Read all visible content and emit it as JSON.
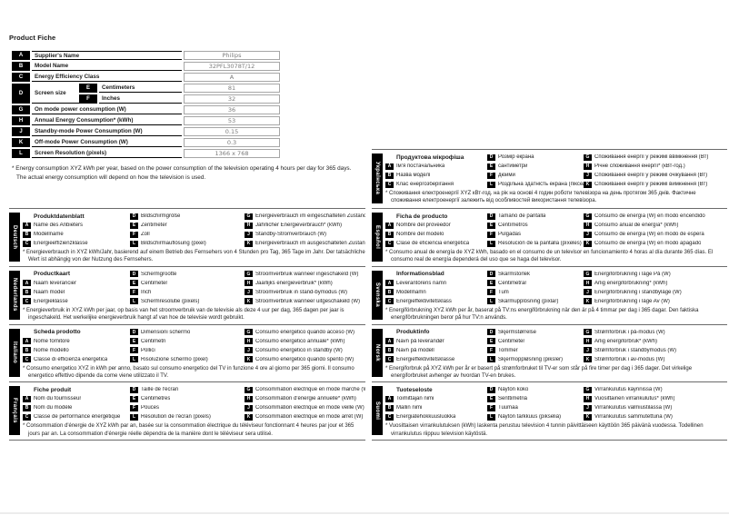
{
  "page": {
    "title": "Product Fiche",
    "colors": {
      "ink": "#1a1a1a",
      "badge_bg": "#000000",
      "badge_text": "#ffffff",
      "value_text": "#7b7b7b",
      "rule": "#6a6a6a"
    }
  },
  "product_table": {
    "rows": [
      {
        "letter": "A",
        "label": "Supplier's Name",
        "value": "Philips"
      },
      {
        "letter": "B",
        "label": "Model Name",
        "value": "32PFL3078T/12"
      },
      {
        "letter": "C",
        "label": "Energy Efficiency Class",
        "value": "A"
      },
      {
        "letter": "D",
        "label": "Screen size",
        "sub": [
          {
            "letter": "E",
            "label": "Centimeters",
            "value": "81"
          },
          {
            "letter": "F",
            "label": "Inches",
            "value": "32"
          }
        ]
      },
      {
        "letter": "G",
        "label": "On mode power consumption (W)",
        "value": "36"
      },
      {
        "letter": "H",
        "label": "Annual Energy Consumption* (kWh)",
        "value": "53"
      },
      {
        "letter": "J",
        "label": "Standby-mode Power Consumption (W)",
        "value": "0.15"
      },
      {
        "letter": "K",
        "label": "Off-mode Power Consumption (W)",
        "value": "0.3"
      },
      {
        "letter": "L",
        "label": "Screen Resolution (pixels)",
        "value": "1366 x 768"
      }
    ],
    "footnote_line1": "* Energy consumption XYZ kWh per year, based on the power consumption of the television operating 4 hours per day for 365 days.",
    "footnote_line2": "The actual energy consumption will depend on how the television is used."
  },
  "sections": {
    "left": [
      {
        "language": "Deutsch",
        "title": "Produktdatenblatt",
        "items": {
          "A": "Name des Anbieters",
          "B": "Modellname",
          "C": "Energieeffizienzklasse",
          "D": "Bildschirmgröße",
          "E": "Zentimeter",
          "F": "Zoll",
          "L": "Bildschirmauflösung (pixel)",
          "G": "Energieverbrauch im eingeschalteten Zustand (W)",
          "H": "Jährlicher Energieverbrauch* (kWh)",
          "J": "Standby-Stromverbrauch (W)",
          "K": "Energieverbrauch im ausgeschalteten Zustand (W)"
        },
        "footnote": "* Energieverbrauch in XYZ kWh/Jahr, basierend auf einem Betrieb des Fernsehers von 4 Stunden pro Tag, 365 Tage im Jahr. Der tatsächliche Wert ist abhängig von der Nutzung des Fernsehers."
      },
      {
        "language": "Nederlands",
        "title": "Productkaart",
        "items": {
          "A": "Naam leverancier",
          "B": "Naam model",
          "C": "Energieklasse",
          "D": "Schermgrootte",
          "E": "Centimeter",
          "F": "Inch",
          "L": "Schermresolutie (pixels)",
          "G": "Stroomverbruik wanneer ingeschakeld (W)",
          "H": "Jaarlijks energieverbruik* (kWh)",
          "J": "Stroomverbruik in stand-bymodus (W)",
          "K": "Stroomverbruik wanneer uitgeschakeld (W)"
        },
        "footnote": "* Energieverbruik in XYZ kWh per jaar, op basis van het stroomverbruik van de televisie als deze 4 uur per dag, 365 dagen per jaar is ingeschakeld. Het werkelijke energieverbruik hangt af van hoe de televisie wordt gebruikt."
      },
      {
        "language": "Italiano",
        "title": "Scheda prodotto",
        "items": {
          "A": "Nome fornitore",
          "B": "Nome modello",
          "C": "Classe di efficienza energetica",
          "D": "Dimensioni schermo",
          "E": "Centimetri",
          "F": "Pollici",
          "L": "Risoluzione schermo (pixel)",
          "G": "Consumo energetico quando acceso (W)",
          "H": "Consumo energetico annuale* (kWh)",
          "J": "Consumo energetico in standby (W)",
          "K": "Consumo energetico quando spento (W)"
        },
        "footnote": "* Consumo energetico XYZ in kWh per anno, basato sul consumo energetico del TV in funzione 4 ore al giorno per 365 giorni. Il consumo energetico effettivo dipende da come viene utilizzato il TV."
      },
      {
        "language": "Français",
        "title": "Fiche produit",
        "items": {
          "A": "Nom du fournisseur",
          "B": "Nom du modèle",
          "C": "Classe de performance énergétique",
          "D": "Taille de l'écran",
          "E": "Centimètres",
          "F": "Pouces",
          "L": "Résolution de l'écran (pixels)",
          "G": "Consommation électrique en mode marche (W)",
          "H": "Consommation d'énergie annuelle* (kWh)",
          "J": "Consommation électrique en mode veille (W)",
          "K": "Consommation électrique en mode arrêt (W)"
        },
        "footnote": "* Consommation d'énergie de XYZ kWh par an, basée sur la consommation électrique du téléviseur fonctionnant 4 heures par jour et 365 jours par an. La consommation d'énergie réelle dépendra de la manière dont le téléviseur sera utilisé."
      }
    ],
    "right": [
      {
        "language": "Українська",
        "title": "Продуктова мікрофіша",
        "items": {
          "A": "Ім'я постачальника",
          "B": "Назва моделі",
          "C": "Клас енергозберігання",
          "D": "Розмір екрана",
          "E": "сантиметри",
          "F": "дюйми",
          "L": "Роздільна здатність екрана (пікселі)",
          "G": "Споживання енергії у режимі ввімкнення (Вт)",
          "H": "Річне споживання енергії* (кВт-год.)",
          "J": "Споживання енергії у режимі очікування (Вт)",
          "K": "Споживання енергії у режимі вимкнення (Вт)"
        },
        "footnote": "* Споживання електроенергії XYZ кВт-год. на рік на основі 4 годин роботи телевізора на день протягом 365 днів. Фактичне споживання електроенергії залежить від особливостей використання телевізора."
      },
      {
        "language": "Español",
        "title": "Ficha de producto",
        "items": {
          "A": "Nombre del proveedor",
          "B": "Nombre del modelo",
          "C": "Clase de eficiencia energética",
          "D": "Tamaño de pantalla",
          "E": "Centímetros",
          "F": "Pulgadas",
          "L": "Resolución de la pantalla (píxeles)",
          "G": "Consumo de energía (W) en modo encendido",
          "H": "Consumo anual de energía* (kWh)",
          "J": "Consumo de energía (W) en modo de espera",
          "K": "Consumo de energía (W) en modo apagado"
        },
        "footnote": "* Consumo anual de energía de XYZ kWh, basado en el consumo de un televisor en funcionamiento 4 horas al día durante 365 días. El consumo real de energía dependerá del uso que se haga del televisor."
      },
      {
        "language": "Svenska",
        "title": "Informationsblad",
        "items": {
          "A": "Leverantörens namn",
          "B": "Modellnamn",
          "C": "Energieffektivitetsklass",
          "D": "Skärmstorlek",
          "E": "Centimetrar",
          "F": "Tum",
          "L": "Skärmupplösning (pixlar)",
          "G": "Energiförbrukning i läge På (W)",
          "H": "Årlig energiförbrukning* (kWh)",
          "J": "Energiförbrukning i standbyläge (W)",
          "K": "Energiförbrukning i läge Av (W)"
        },
        "footnote": "* Energiförbrukning XYZ kWh per år, baserat på TV:ns energiförbrukning när den är på 4 timmar per dag i 365 dagar. Den faktiska energiförbrukningen beror på hur TV:n används."
      },
      {
        "language": "Norsk",
        "title": "Produktinfo",
        "items": {
          "A": "Navn på leverandør",
          "B": "Navn på modell",
          "C": "Energieffektivitetsklasse",
          "D": "Skjermstørrelse",
          "E": "Centimeter",
          "F": "Tommer",
          "L": "Skjermoppløsning (piksler)",
          "G": "Strømforbruk i på-modus (W)",
          "H": "Årlig energiforbruk* (kWh)",
          "J": "Strømforbruk i standbymodus (W)",
          "K": "Strømforbruk i av-modus (W)"
        },
        "footnote": "* Energiforbruk på XYZ kWh per år er basert på strømforbruket til TV-er som står på fire timer per dag i 365 dager. Det virkelige energiforbruket avhenger av hvordan TV-en brukes."
      },
      {
        "language": "Suomi",
        "title": "Tuoteseloste",
        "items": {
          "A": "Toimittajan nimi",
          "B": "Mallin nimi",
          "C": "Energiatehokkuusluokka",
          "D": "Näytön koko",
          "E": "Senttimetriä",
          "F": "Tuumaa",
          "L": "Näytön tarkkuus (pikseliä)",
          "G": "Virrankulutus käynnissä (W)",
          "H": "Vuosittainen virrankulutus* (kWh)",
          "J": "Virrankulutus valmiustilassa (W)",
          "K": "Virrankulutus sammutettuna (W)"
        },
        "footnote": "* Vuosittaisen virrankulutuksen (kWh) laskenta perustuu television 4 tunnin päivittäiseen käyttöön 365 päivänä vuodessa. Todellinen virrankulutus riippuu television käytöstä."
      }
    ]
  }
}
